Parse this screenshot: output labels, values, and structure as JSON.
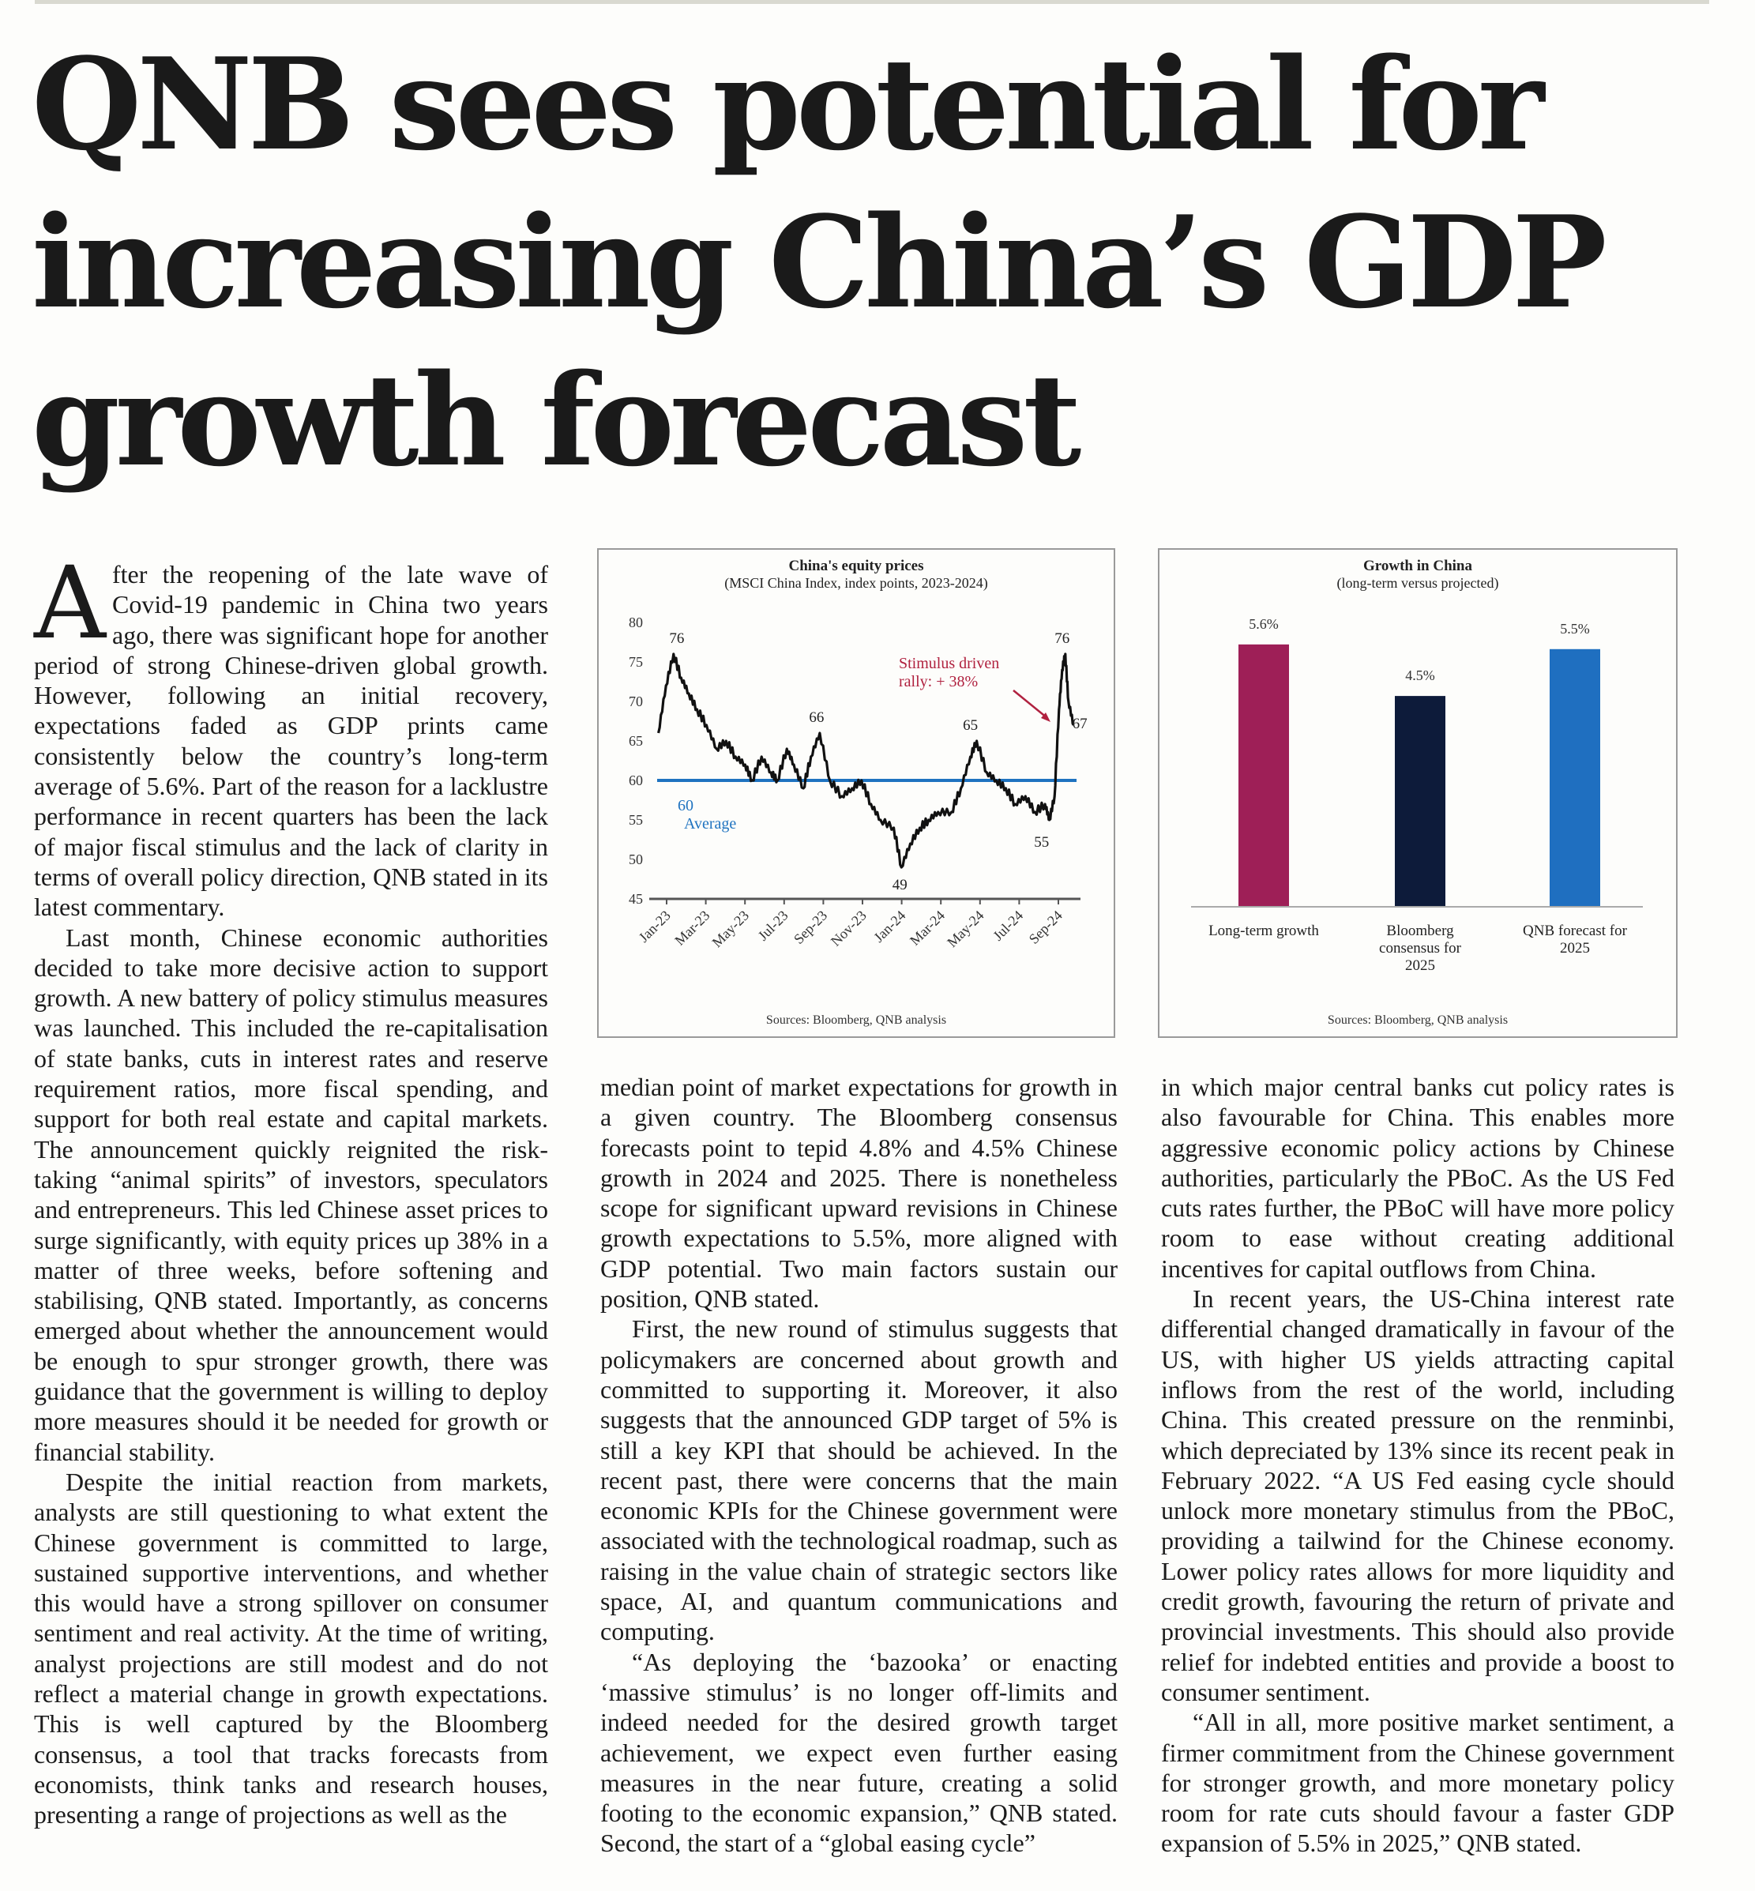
{
  "headline": "QNB sees potential for increasing China’s GDP growth forecast",
  "article": {
    "dropcap": "A",
    "col1": [
      "fter the reopening of the late wave of Covid-19 pandemic in China two years ago, there was significant hope for another period of strong Chinese-driven global growth. However, following an initial recovery, expectations faded as GDP prints came consistently below the country’s long-term average of 5.6%. Part of the reason for a lacklustre performance in recent quarters has been the lack of major fiscal stimulus and the lack of clarity in terms of overall policy direction, QNB stated in its latest commentary.",
      "Last month, Chinese economic authorities decided to take more decisive action to support growth. A new battery of policy stimulus measures was launched. This included the re-capitalisation of state banks, cuts in interest rates and reserve requirement ratios, more fiscal spending, and support for both real estate and capital markets. The announcement quickly reignited the risk-taking “animal spirits” of investors, speculators and entrepreneurs. This led Chinese asset prices to surge significantly, with equity prices up 38% in a matter of three weeks, before softening and stabilising, QNB stated. Importantly, as concerns emerged about whether the announcement would be enough to spur stronger growth, there was guidance that the government is willing to deploy more measures should it be needed for growth or financial stability.",
      "Despite the initial reaction from markets, analysts are still questioning to what extent the Chinese government is committed to large, sustained supportive interventions, and whether this would have a strong spillover on consumer sentiment and real activity. At the time of writing, analyst projections are still modest and do not reflect a material change in growth expectations. This is well captured by the Bloomberg consensus, a tool that tracks forecasts from economists, think tanks and research houses, presenting a range of projections as well as the"
    ],
    "col2": [
      "median point of market expectations for growth in a given country. The Bloomberg consensus forecasts point to tepid 4.8% and 4.5% Chinese growth in 2024 and 2025. There is nonetheless scope for significant upward revisions in Chinese growth expectations to 5.5%, more aligned with GDP potential. Two main factors sustain our position, QNB stated.",
      "First, the new round of stimulus suggests that policymakers are concerned about growth and committed to supporting it. Moreover, it also suggests that the announced GDP target of 5% is still a key KPI that should be achieved. In the recent past, there were concerns that the main economic KPIs for the Chinese government were associated with the technological roadmap, such as raising in the value chain of strategic sectors like space, AI, and quantum communications and computing.",
      "“As deploying the ‘bazooka’ or enacting ‘massive stimulus’ is no longer off-limits and indeed needed for the desired growth target achievement, we expect even further easing measures in the near future, creating a solid footing to the economic expansion,” QNB stated. Second, the start of a “global easing cycle”"
    ],
    "col3": [
      "in which major central banks cut policy rates is also favourable for China. This enables more aggressive economic policy actions by Chinese authorities, particularly the PBoC. As the US Fed cuts rates further, the PBoC will have more policy room to ease without creating additional incentives for capital outflows from China.",
      "In recent years, the US-China interest rate differential changed dramatically in favour of the US, with higher US yields attracting capital inflows from the rest of the world, including China. This created pressure on the renminbi, which depreciated by 13% since its recent peak in February 2022. “A US Fed easing cycle should unlock more monetary stimulus from the PBoC, providing a tailwind for the Chinese economy. Lower policy rates allows for more liquidity and credit growth, favouring the return of private and provincial investments. This should also provide relief for indebted entities and provide a boost to consumer sentiment.",
      "“All in all, more positive market sentiment, a firmer commitment from the Chinese government for stronger growth, and more monetary policy room for rate cuts should favour a faster GDP expansion of 5.5% in 2025,” QNB stated."
    ]
  },
  "chart_data": [
    {
      "type": "line",
      "title": "China's equity prices",
      "subtitle": "(MSCI China Index, index points, 2023-2024)",
      "yticks": [
        45,
        50,
        55,
        60,
        65,
        70,
        75,
        80
      ],
      "ylim": [
        45,
        80
      ],
      "xticks": [
        "Jan-23",
        "Mar-23",
        "May-23",
        "Jul-23",
        "Sep-23",
        "Nov-23",
        "Jan-24",
        "Mar-24",
        "May-24",
        "Jul-24",
        "Sep-24"
      ],
      "xlim": [
        "2023-01-01",
        "2024-10-31"
      ],
      "series": [
        {
          "color": "#111111",
          "points": [
            [
              "2023-01-03",
              66
            ],
            [
              "2023-01-15",
              72
            ],
            [
              "2023-01-27",
              76
            ],
            [
              "2023-02-08",
              73
            ],
            [
              "2023-02-20",
              71
            ],
            [
              "2023-03-05",
              69
            ],
            [
              "2023-03-20",
              67
            ],
            [
              "2023-04-05",
              64
            ],
            [
              "2023-04-20",
              65
            ],
            [
              "2023-05-05",
              63
            ],
            [
              "2023-05-20",
              62
            ],
            [
              "2023-05-31",
              60
            ],
            [
              "2023-06-15",
              63
            ],
            [
              "2023-06-30",
              61
            ],
            [
              "2023-07-10",
              60
            ],
            [
              "2023-07-25",
              64
            ],
            [
              "2023-08-05",
              62
            ],
            [
              "2023-08-20",
              59
            ],
            [
              "2023-09-01",
              63
            ],
            [
              "2023-09-15",
              66
            ],
            [
              "2023-10-01",
              60
            ],
            [
              "2023-10-20",
              58
            ],
            [
              "2023-11-05",
              59
            ],
            [
              "2023-11-20",
              60
            ],
            [
              "2023-12-05",
              57
            ],
            [
              "2023-12-20",
              55
            ],
            [
              "2024-01-10",
              54
            ],
            [
              "2024-01-22",
              49
            ],
            [
              "2024-02-05",
              52
            ],
            [
              "2024-02-20",
              54
            ],
            [
              "2024-03-05",
              55
            ],
            [
              "2024-03-20",
              56
            ],
            [
              "2024-04-10",
              56
            ],
            [
              "2024-04-25",
              59
            ],
            [
              "2024-05-10",
              63
            ],
            [
              "2024-05-20",
              65
            ],
            [
              "2024-06-05",
              61
            ],
            [
              "2024-06-20",
              60
            ],
            [
              "2024-07-05",
              59
            ],
            [
              "2024-07-20",
              57
            ],
            [
              "2024-08-05",
              58
            ],
            [
              "2024-08-20",
              56
            ],
            [
              "2024-09-05",
              57
            ],
            [
              "2024-09-12",
              55
            ],
            [
              "2024-09-20",
              58
            ],
            [
              "2024-09-27",
              69
            ],
            [
              "2024-10-02",
              74
            ],
            [
              "2024-10-07",
              76
            ],
            [
              "2024-10-12",
              70
            ],
            [
              "2024-10-20",
              67
            ]
          ]
        }
      ],
      "reference_line": {
        "value": 60,
        "color": "#1f73c0"
      },
      "annotations": [
        {
          "text": "76",
          "x": "2023-01-27",
          "y": 76
        },
        {
          "text": "66",
          "x": "2023-09-15",
          "y": 66
        },
        {
          "text": "49",
          "x": "2024-01-22",
          "y": 49
        },
        {
          "text": "65",
          "x": "2024-05-20",
          "y": 65
        },
        {
          "text": "55",
          "x": "2024-09-12",
          "y": 55
        },
        {
          "text": "76",
          "x": "2024-10-07",
          "y": 76
        },
        {
          "text": "67",
          "x": "2024-10-20",
          "y": 67
        }
      ],
      "average_labels": [
        "60",
        "Average"
      ],
      "rally_labels": [
        "Stimulus driven",
        "rally: + 38%"
      ],
      "colors": {
        "line": "#111111",
        "average": "#1f73c0",
        "rally": "#b0213f",
        "axis": "#555555"
      },
      "source": "Sources: Bloomberg, QNB analysis"
    },
    {
      "type": "bar",
      "title": "Growth in China",
      "subtitle": "(long-term versus projected)",
      "categories": [
        [
          "Long-term growth"
        ],
        [
          "Bloomberg",
          "consensus for",
          "2025"
        ],
        [
          "QNB forecast for",
          "2025"
        ]
      ],
      "values": [
        5.6,
        4.5,
        5.5
      ],
      "value_labels": [
        "5.6%",
        "4.5%",
        "5.5%"
      ],
      "ylim": [
        0,
        5.8
      ],
      "colors": [
        "#9e1f57",
        "#0d1b3a",
        "#1f6fc0"
      ],
      "source": "Sources: Bloomberg, QNB analysis"
    }
  ]
}
